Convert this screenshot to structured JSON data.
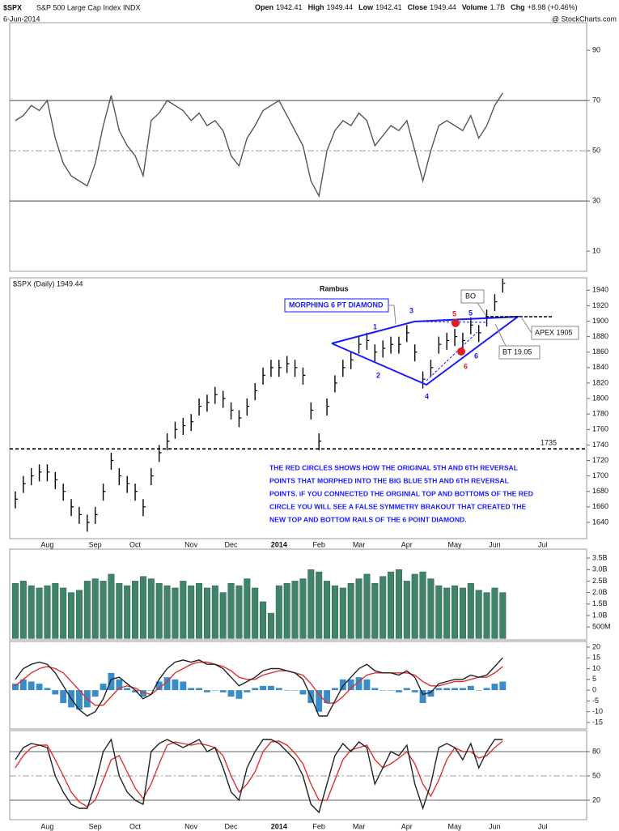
{
  "header": {
    "title": "$SPX",
    "subtitle": "S&P 500 Large Cap Index",
    "exchange": "INDX",
    "date": "6-Jun-2014",
    "source": "@ StockCharts.com",
    "quote": [
      {
        "label": "Open",
        "value": "1942.41"
      },
      {
        "label": "High",
        "value": "1949.44"
      },
      {
        "label": "Low",
        "value": "1942.41"
      },
      {
        "label": "Close",
        "value": "1949.44"
      },
      {
        "label": "Volume",
        "value": "1.7B"
      },
      {
        "label": "Chg",
        "value": "+8.98 (+0.46%)"
      }
    ]
  },
  "chart_data": [
    {
      "type": "line",
      "ylim": [
        2,
        101
      ],
      "yticks": [
        10,
        30,
        50,
        70,
        90
      ],
      "hlines": [
        {
          "value": 70,
          "color": "#444",
          "style": "solid"
        },
        {
          "value": 50,
          "color": "#999",
          "style": "dashdot"
        },
        {
          "value": 30,
          "color": "#444",
          "style": "solid"
        }
      ],
      "series": [
        {
          "color": "#555555",
          "values": [
            62,
            64,
            68,
            66,
            70,
            55,
            45,
            40,
            38,
            36,
            45,
            60,
            72,
            58,
            52,
            48,
            40,
            62,
            65,
            70,
            68,
            66,
            62,
            65,
            60,
            62,
            58,
            48,
            44,
            55,
            60,
            66,
            68,
            70,
            64,
            58,
            52,
            38,
            32,
            50,
            58,
            62,
            60,
            65,
            62,
            52,
            56,
            60,
            58,
            62,
            50,
            38,
            50,
            60,
            62,
            60,
            58,
            64,
            55,
            60,
            68,
            73,
            null,
            null,
            null,
            null,
            null,
            null,
            null,
            null,
            null,
            null
          ]
        }
      ]
    },
    {
      "type": "hlc",
      "legend": "$SPX (Daily) 1949.44",
      "note_title": "Rambus",
      "pattern_label": "MORPHING 6 PT DIAMOND",
      "points": [
        "1",
        "2",
        "3",
        "4",
        "5",
        "6"
      ],
      "red_points": [
        "5",
        "6"
      ],
      "breakout": "BO",
      "apex": "APEX 1905",
      "backtest": "BT 19.05",
      "comment": [
        "THE RED CIRCLES SHOWS HOW THE ORIGINAL 5TH AND 6TH REVERSAL",
        "POINTS THAT MORPHED INTO THE BIG BLUE 5TH AND 6TH REVERSAL",
        "POINTS. iF YOU CONNECTED THE ORGINIAL TOP AND BOTTOMS OF THE RED",
        "CIRCLE YOU WILL SEE A FALSE SYMMETRY BRAKOUT THAT CREATED THE",
        "NEW TOP AND BOTTOM RAILS OF THE 6 POINT DIAMOND."
      ],
      "categories": [
        null,
        null,
        null,
        null,
        "Aug",
        null,
        null,
        null,
        null,
        null,
        "Sep",
        null,
        null,
        null,
        null,
        "Oct",
        null,
        null,
        null,
        null,
        null,
        null,
        "Nov",
        null,
        null,
        null,
        null,
        "Dec",
        null,
        null,
        null,
        null,
        null,
        "2014",
        null,
        null,
        null,
        null,
        "Feb",
        null,
        null,
        null,
        null,
        "Mar",
        null,
        null,
        null,
        null,
        null,
        "Apr",
        null,
        null,
        null,
        null,
        null,
        "May",
        null,
        null,
        null,
        null,
        "Jun",
        null,
        null,
        null,
        null,
        null,
        "Jul",
        null,
        null,
        null,
        null,
        null
      ],
      "ylim": [
        1619,
        1956
      ],
      "yticks": [
        1640,
        1660,
        1680,
        1700,
        1720,
        1740,
        1760,
        1780,
        1800,
        1820,
        1840,
        1860,
        1880,
        1900,
        1920,
        1940
      ],
      "hlines": [
        {
          "value": 1735,
          "color": "#000",
          "style": "dashed",
          "labeled": true
        }
      ],
      "color": "#000000",
      "high": [
        1680,
        1700,
        1710,
        1715,
        1715,
        1705,
        1690,
        1670,
        1660,
        1650,
        1660,
        1690,
        1730,
        1710,
        1700,
        1690,
        1670,
        1710,
        1740,
        1755,
        1770,
        1775,
        1780,
        1800,
        1805,
        1815,
        1810,
        1795,
        1785,
        1800,
        1820,
        1840,
        1850,
        1850,
        1855,
        1850,
        1840,
        1795,
        1755,
        1800,
        1830,
        1850,
        1860,
        1880,
        1885,
        1870,
        1875,
        1880,
        1880,
        1895,
        1870,
        1835,
        1850,
        1880,
        1885,
        1890,
        1885,
        1905,
        1895,
        1915,
        1935,
        1955,
        null,
        null,
        null,
        null,
        null,
        null,
        null,
        null,
        null,
        null
      ],
      "low": [
        1658,
        1678,
        1688,
        1693,
        1693,
        1683,
        1668,
        1648,
        1638,
        1628,
        1638,
        1668,
        1708,
        1688,
        1678,
        1668,
        1648,
        1688,
        1718,
        1733,
        1748,
        1753,
        1758,
        1778,
        1783,
        1793,
        1788,
        1773,
        1763,
        1778,
        1798,
        1818,
        1828,
        1828,
        1833,
        1828,
        1818,
        1773,
        1733,
        1778,
        1808,
        1828,
        1838,
        1858,
        1863,
        1848,
        1853,
        1858,
        1858,
        1873,
        1848,
        1813,
        1828,
        1858,
        1863,
        1868,
        1863,
        1883,
        1873,
        1893,
        1913,
        1937,
        null,
        null,
        null,
        null,
        null,
        null,
        null,
        null,
        null,
        null
      ],
      "close": [
        1670,
        1690,
        1700,
        1705,
        1705,
        1695,
        1680,
        1660,
        1650,
        1640,
        1650,
        1680,
        1720,
        1700,
        1690,
        1680,
        1660,
        1700,
        1730,
        1745,
        1760,
        1765,
        1770,
        1790,
        1795,
        1805,
        1800,
        1785,
        1775,
        1790,
        1810,
        1830,
        1840,
        1840,
        1845,
        1840,
        1830,
        1785,
        1745,
        1790,
        1820,
        1840,
        1850,
        1870,
        1875,
        1860,
        1865,
        1870,
        1870,
        1885,
        1860,
        1825,
        1840,
        1870,
        1875,
        1880,
        1875,
        1895,
        1885,
        1905,
        1925,
        1949,
        null,
        null,
        null,
        null,
        null,
        null,
        null,
        null,
        null,
        null
      ]
    },
    {
      "type": "bar",
      "ylim": [
        -0.06,
        3.89
      ],
      "color": "#3f8468",
      "yticks": [
        {
          "value": 3.5,
          "label": "3.5B"
        },
        {
          "value": 3.0,
          "label": "3.0B"
        },
        {
          "value": 2.5,
          "label": "2.5B"
        },
        {
          "value": 2.0,
          "label": "2.0B"
        },
        {
          "value": 1.5,
          "label": "1.5B"
        },
        {
          "value": 1.0,
          "label": "1.0B"
        },
        {
          "value": 0.5,
          "label": "500M"
        }
      ],
      "values": [
        2.4,
        2.5,
        2.3,
        2.2,
        2.3,
        2.4,
        2.2,
        2.0,
        2.1,
        2.5,
        2.6,
        2.5,
        2.8,
        2.4,
        2.3,
        2.5,
        2.7,
        2.6,
        2.4,
        2.3,
        2.2,
        2.5,
        2.3,
        2.4,
        2.2,
        2.3,
        2.0,
        2.4,
        2.3,
        2.6,
        2.2,
        1.6,
        1.1,
        2.3,
        2.4,
        2.5,
        2.6,
        3.0,
        2.9,
        2.5,
        2.3,
        2.2,
        2.4,
        2.6,
        2.8,
        2.4,
        2.7,
        2.9,
        3.0,
        2.5,
        2.8,
        2.9,
        2.6,
        2.3,
        2.2,
        2.3,
        2.2,
        2.4,
        2.1,
        2.0,
        2.2,
        2.0,
        null,
        null,
        null,
        null,
        null,
        null,
        null,
        null,
        null,
        null
      ]
    },
    {
      "type": "line",
      "ylim": [
        -18,
        22.6
      ],
      "yticks": [
        20,
        15,
        10,
        5,
        0,
        -5,
        -10,
        -15
      ],
      "hlines": [],
      "series": [
        {
          "type": "bar",
          "color": "#3a8cc6",
          "values": [
            3,
            5,
            4,
            3,
            1,
            -2,
            -6,
            -8,
            -9,
            -8,
            -3,
            3,
            8,
            5,
            1,
            -1,
            -3,
            0,
            4,
            6,
            5,
            4,
            1,
            1,
            -1,
            0,
            -1,
            -3,
            -4,
            -1,
            1,
            2,
            2,
            1,
            0,
            0,
            -2,
            -6,
            -10,
            -6,
            1,
            5,
            5,
            6,
            5,
            1,
            0,
            0,
            -1,
            1,
            -1,
            -6,
            -3,
            1,
            1,
            1,
            1,
            2,
            0,
            1,
            3,
            4,
            null,
            null,
            null,
            null,
            null,
            null,
            null,
            null,
            null,
            null
          ]
        },
        {
          "color": "#e03030",
          "values": [
            2,
            5,
            8,
            10,
            11,
            10,
            8,
            4,
            0,
            -4,
            -7,
            -7,
            -3,
            1,
            2,
            1,
            -1,
            -2,
            1,
            4,
            8,
            10,
            12,
            13,
            13,
            12,
            11,
            9,
            6,
            5,
            5,
            7,
            8,
            9,
            9,
            8,
            7,
            3,
            -2,
            -6,
            -6,
            -3,
            1,
            4,
            7,
            8,
            8,
            8,
            8,
            8,
            7,
            4,
            2,
            2,
            3,
            4,
            4,
            5,
            6,
            6,
            8,
            11,
            null,
            null,
            null,
            null,
            null,
            null,
            null,
            null,
            null,
            null
          ]
        },
        {
          "color": "#222222",
          "values": [
            5,
            10,
            12,
            13,
            12,
            8,
            2,
            -4,
            -9,
            -12,
            -10,
            -4,
            5,
            6,
            3,
            0,
            -4,
            -2,
            5,
            10,
            13,
            14,
            13,
            14,
            12,
            12,
            10,
            6,
            2,
            4,
            6,
            9,
            10,
            10,
            9,
            8,
            5,
            -3,
            -12,
            -12,
            -5,
            2,
            6,
            10,
            12,
            9,
            8,
            8,
            7,
            9,
            6,
            -2,
            -1,
            3,
            4,
            5,
            5,
            7,
            6,
            7,
            11,
            15,
            null,
            null,
            null,
            null,
            null,
            null,
            null,
            null,
            null,
            null
          ]
        }
      ]
    },
    {
      "type": "line",
      "ylim": [
        -4,
        106
      ],
      "yticks": [
        20,
        50,
        80
      ],
      "hlines": [
        {
          "value": 80,
          "color": "#666",
          "style": "solid"
        },
        {
          "value": 50,
          "color": "#999",
          "style": "dashdot"
        },
        {
          "value": 20,
          "color": "#666",
          "style": "solid"
        }
      ],
      "series": [
        {
          "color": "#e03030",
          "values": [
            60,
            75,
            85,
            88,
            88,
            70,
            50,
            30,
            18,
            12,
            20,
            45,
            70,
            75,
            55,
            35,
            22,
            40,
            65,
            88,
            92,
            90,
            88,
            90,
            88,
            85,
            75,
            50,
            30,
            40,
            55,
            80,
            92,
            93,
            88,
            78,
            65,
            40,
            20,
            20,
            45,
            70,
            82,
            85,
            88,
            70,
            60,
            65,
            72,
            80,
            65,
            40,
            25,
            45,
            70,
            85,
            80,
            80,
            72,
            75,
            85,
            93,
            null,
            null,
            null,
            null,
            null,
            null,
            null,
            null,
            null,
            null
          ]
        },
        {
          "color": "#222222",
          "values": [
            70,
            85,
            90,
            88,
            85,
            50,
            30,
            15,
            10,
            10,
            40,
            80,
            95,
            50,
            30,
            20,
            15,
            80,
            90,
            95,
            90,
            85,
            90,
            95,
            80,
            85,
            60,
            30,
            20,
            60,
            80,
            95,
            95,
            90,
            80,
            70,
            50,
            15,
            5,
            40,
            75,
            90,
            80,
            92,
            85,
            40,
            60,
            80,
            75,
            88,
            40,
            10,
            40,
            85,
            90,
            85,
            70,
            90,
            60,
            80,
            95,
            95,
            null,
            null,
            null,
            null,
            null,
            null,
            null,
            null,
            null,
            null
          ]
        }
      ]
    }
  ]
}
